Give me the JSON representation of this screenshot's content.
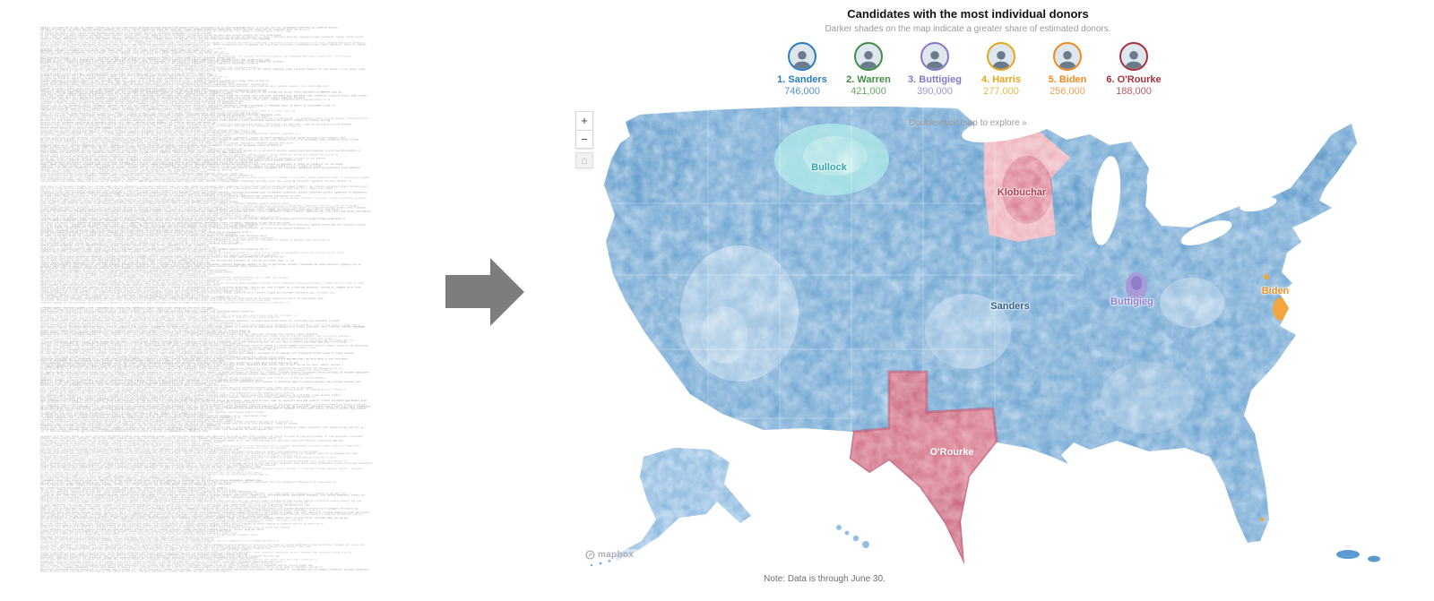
{
  "left_panel": {
    "kind": "illegible raw donor records dump",
    "line_count": 282,
    "paragraph_breaks": [
      82,
      144,
      210
    ],
    "text_color": "#8a8a8a"
  },
  "arrow": {
    "color": "#7d7d7d"
  },
  "map_header": {
    "title": "Candidates with the most individual donors",
    "subtitle": "Darker shades on the map indicate a greater share of estimated donors.",
    "explore_hint": "Double-click map to explore »"
  },
  "candidates": [
    {
      "rank_name": "1. Sanders",
      "donors": "746,000",
      "color": "#2a7cc0"
    },
    {
      "rank_name": "2. Warren",
      "donors": "421,000",
      "color": "#3e8f41"
    },
    {
      "rank_name": "3. Buttigieg",
      "donors": "390,000",
      "color": "#8678c9"
    },
    {
      "rank_name": "4. Harris",
      "donors": "277,000",
      "color": "#e3a81c"
    },
    {
      "rank_name": "5. Biden",
      "donors": "256,000",
      "color": "#f18a21"
    },
    {
      "rank_name": "6. O'Rourke",
      "donors": "188,000",
      "color": "#a8323e"
    }
  ],
  "map": {
    "labels": [
      {
        "text": "Bullock",
        "color": "#2ea7b0"
      },
      {
        "text": "Klobuchar",
        "color": "#b23a49"
      },
      {
        "text": "Sanders",
        "color": "#2e5f8e"
      },
      {
        "text": "Buttigieg",
        "color": "#8a7ccb"
      },
      {
        "text": "Biden",
        "color": "#ee9227"
      },
      {
        "text": "O'Rourke",
        "color": "#ffffff"
      }
    ],
    "zoom_in_label": "+",
    "zoom_out_label": "−",
    "home_label": "⌂",
    "attribution": "mapbox",
    "note": "Note: Data is through June 30.",
    "palette": {
      "base_blue": "#74abd9",
      "pink": "#d2687f",
      "teal": "#c2e9ec",
      "purple": "#9486cf",
      "orange": "#f3a63f"
    }
  }
}
